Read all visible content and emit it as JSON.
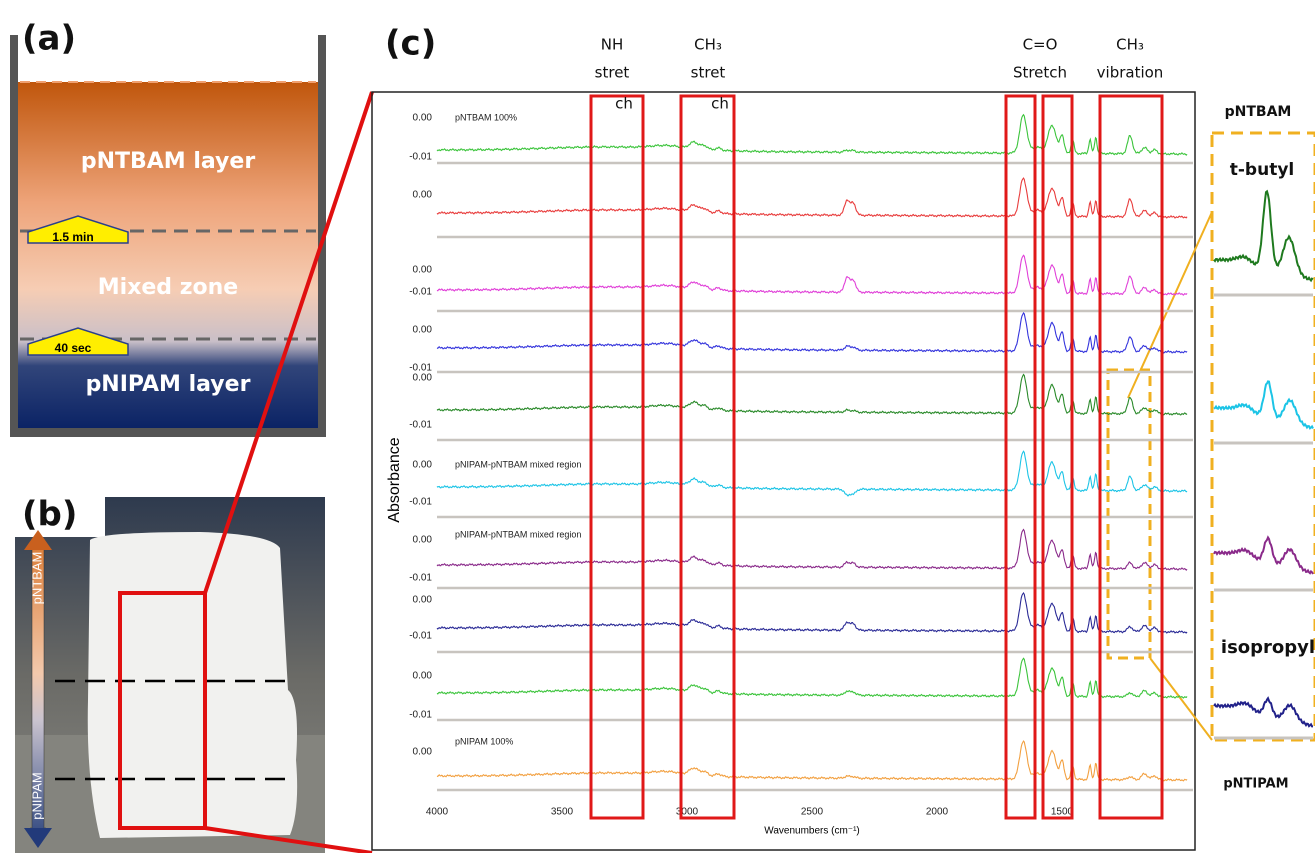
{
  "panel_a": {
    "label": "(a)",
    "layers": [
      "pNTBAM layer",
      "Mixed zone",
      "pNIPAM layer"
    ],
    "markers": [
      "1.5 min",
      "40 sec"
    ]
  },
  "panel_b": {
    "label": "(b)",
    "arrow_labels": [
      "pNTBAM",
      "pNIPAM"
    ]
  },
  "panel_c": {
    "label": "(c)",
    "y_label": "Absorbance",
    "x_label": "Wavenumbers (cm⁻¹)",
    "x_ticks": [
      4000,
      3500,
      3000,
      2500,
      2000,
      1500
    ],
    "regions": [
      {
        "lines": [
          "NH",
          "stret",
          "ch"
        ]
      },
      {
        "lines": [
          "CH₃",
          "stret",
          "ch"
        ]
      },
      {
        "lines": [
          "C=O",
          "Stretch"
        ]
      },
      {
        "lines": [
          "CH₃",
          "vibration"
        ]
      }
    ],
    "spectra": [
      {
        "label": "pNTBAM  100%",
        "color": "#3cc43c",
        "ticks": [
          "0.00",
          "-0.01"
        ]
      },
      {
        "color": "#e83c3c",
        "ticks": [
          "0.00"
        ]
      },
      {
        "color": "#e040d8",
        "ticks": [
          "0.00",
          "-0.01"
        ]
      },
      {
        "color": "#3434dc",
        "ticks": [
          "0.00",
          "-0.01"
        ]
      },
      {
        "color": "#2a8a2a",
        "ticks": [
          "0.00",
          "-0.01"
        ]
      },
      {
        "label": "pNIPAM-pNTBAM mixed region",
        "color": "#1cc4e6",
        "ticks": [
          "0.00",
          "-0.01"
        ]
      },
      {
        "label": "pNIPAM-pNTBAM mixed region",
        "color": "#8a2a8a",
        "ticks": [
          "0.00",
          "-0.01"
        ]
      },
      {
        "color": "#2a2a96",
        "ticks": [
          "0.00",
          "-0.01"
        ]
      },
      {
        "color": "#3cc43c",
        "ticks": [
          "0.00",
          "-0.01"
        ]
      },
      {
        "label": "pNIPAM  100%",
        "color": "#f2a040",
        "ticks": [
          "0.00"
        ]
      }
    ],
    "inset": {
      "top": "pNTBAM",
      "bottom": "pNTIPAM",
      "peaks": [
        "t-butyl",
        "isopropyl"
      ],
      "colors": [
        "#1f7a1f",
        "#1cc4e6",
        "#8a2a8a",
        "#22228a"
      ]
    }
  }
}
